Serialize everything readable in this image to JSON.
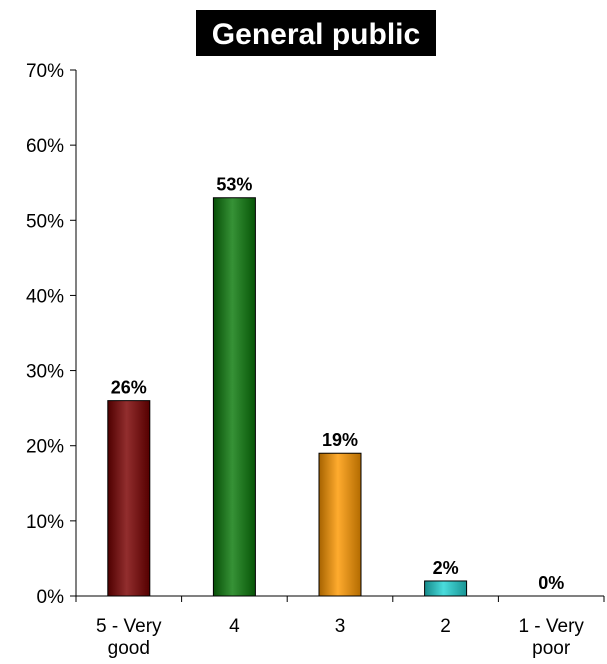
{
  "chart_data": {
    "type": "bar",
    "title": "General public",
    "categories": [
      [
        "5 - Very",
        "good"
      ],
      [
        "4"
      ],
      [
        "3"
      ],
      [
        "2"
      ],
      [
        "1 - Very",
        "poor"
      ]
    ],
    "values": [
      26,
      53,
      19,
      2,
      0
    ],
    "data_labels": [
      "26%",
      "53%",
      "19%",
      "2%",
      "0%"
    ],
    "bar_colors": [
      "#7a0000",
      "#0a7a0a",
      "#ff9900",
      "#22d4d4",
      "#cccccc"
    ],
    "ylim": [
      0,
      70
    ],
    "yticks": [
      0,
      10,
      20,
      30,
      40,
      50,
      60,
      70
    ],
    "ytick_labels": [
      "0%",
      "10%",
      "20%",
      "30%",
      "40%",
      "50%",
      "60%",
      "70%"
    ],
    "xlabel": "",
    "ylabel": "",
    "grid": false,
    "legend": "none",
    "title_box_color": "#000000",
    "title_text_color": "#ffffff"
  }
}
